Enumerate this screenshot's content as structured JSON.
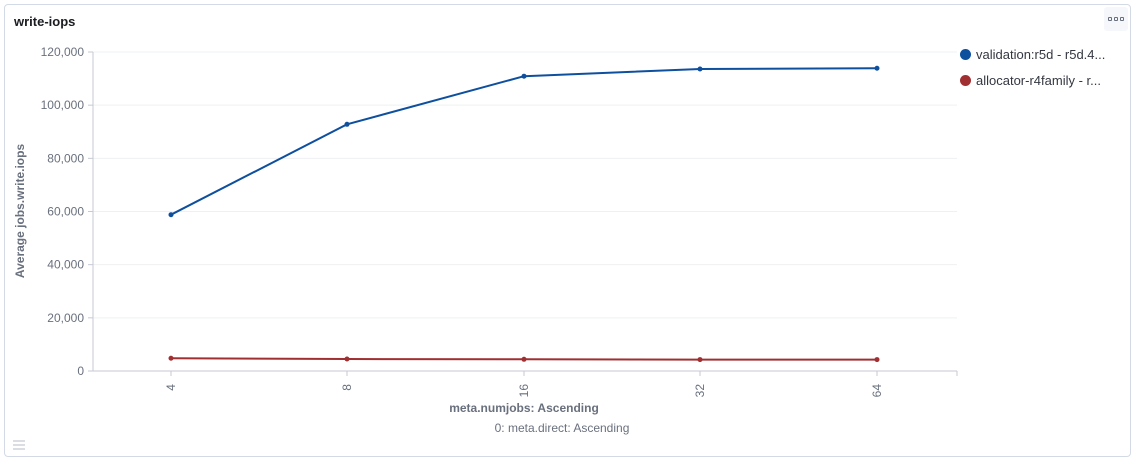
{
  "panel": {
    "title": "write-iops",
    "menu_icon": "options-menu-icon"
  },
  "chart_data": {
    "type": "line",
    "title": "write-iops",
    "categories": [
      "4",
      "8",
      "16",
      "32",
      "64"
    ],
    "xlabel": "meta.numjobs: Ascending",
    "xsublabel": "0: meta.direct: Ascending",
    "ylabel": "Average jobs.write.iops",
    "ylim": [
      0,
      120000
    ],
    "yticks": [
      0,
      20000,
      40000,
      60000,
      80000,
      100000,
      120000
    ],
    "ytick_labels": [
      "0",
      "20,000",
      "40,000",
      "60,000",
      "80,000",
      "100,000",
      "120,000"
    ],
    "grid": true,
    "legend_position": "right",
    "series": [
      {
        "name": "validation:r5d - r5d.4...",
        "color": "#0e4f9e",
        "values": [
          58800,
          92800,
          110900,
          113600,
          113900
        ]
      },
      {
        "name": "allocator-r4family - r...",
        "color": "#a02f31",
        "values": [
          4800,
          4500,
          4400,
          4300,
          4300
        ]
      }
    ]
  }
}
